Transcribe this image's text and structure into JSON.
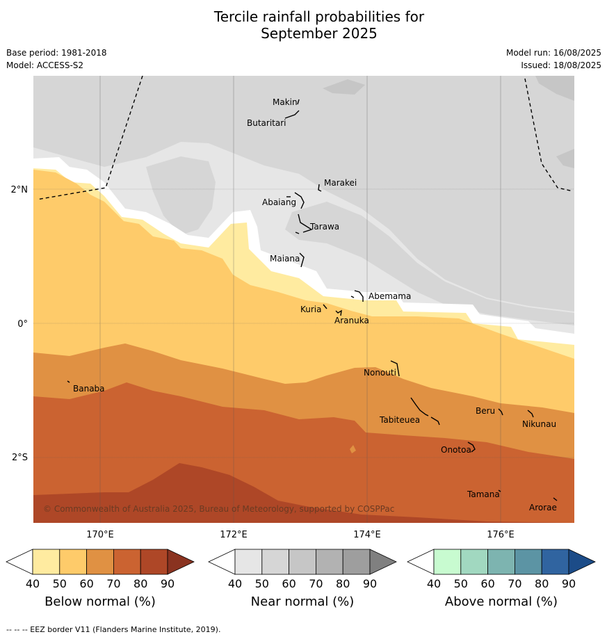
{
  "title_line1": "Tercile rainfall probabilities for",
  "title_line2": "September 2025",
  "base_period": "Base period: 1981-2018",
  "model": "Model: ACCESS-S2",
  "model_run": "Model run: 16/08/2025",
  "issued": "Issued: 18/08/2025",
  "lat_labels": [
    "2°N",
    "0°",
    "2°S"
  ],
  "lon_labels": [
    "170°E",
    "172°E",
    "174°E",
    "176°E"
  ],
  "islands": [
    "Makin",
    "Butaritari",
    "Marakei",
    "Abaiang",
    "Tarawa",
    "Maiana",
    "Abemama",
    "Kuria",
    "Aranuka",
    "Banaba",
    "Nonouti",
    "Tabiteuea",
    "Beru",
    "Nikunau",
    "Onotoa",
    "Tamana",
    "Arorae"
  ],
  "copyright": "© Commonwealth of Australia 2025, Bureau of Meteorology, supported by COSPPac",
  "colorbars": [
    {
      "label": "Below normal (%)",
      "ticks": [
        "40",
        "50",
        "60",
        "70",
        "80",
        "90"
      ],
      "colors": [
        "#ffffff",
        "#ffeba0",
        "#fecb6a",
        "#e09143",
        "#cb6331",
        "#ae4727",
        "#8a3320"
      ]
    },
    {
      "label": "Near normal (%)",
      "ticks": [
        "40",
        "50",
        "60",
        "70",
        "80",
        "90"
      ],
      "colors": [
        "#ffffff",
        "#e6e6e6",
        "#d6d6d6",
        "#c6c6c6",
        "#b2b2b2",
        "#9e9e9e",
        "#808080"
      ]
    },
    {
      "label": "Above normal (%)",
      "ticks": [
        "40",
        "50",
        "60",
        "70",
        "80",
        "90"
      ],
      "colors": [
        "#ffffff",
        "#c8fbd0",
        "#a1d8c0",
        "#7db4b0",
        "#5c94a4",
        "#3064a0",
        "#1c4c88"
      ]
    }
  ],
  "footnote": "--  --  -- EEZ border V11 (Flanders Marine Institute, 2019)."
}
